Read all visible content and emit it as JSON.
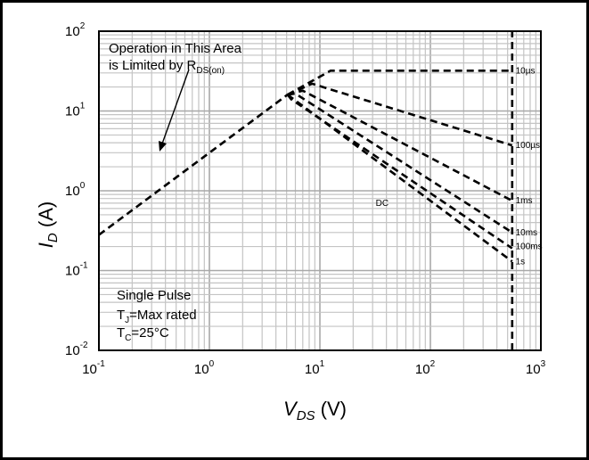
{
  "chart_data": {
    "type": "line",
    "xscale": "log",
    "yscale": "log",
    "xlim": [
      0.1,
      1000
    ],
    "ylim": [
      0.01,
      100
    ],
    "grid": true,
    "xlabel": {
      "main": "V",
      "sub": "DS",
      "unit": " (V)"
    },
    "ylabel": {
      "main": "I",
      "sub": "D",
      "unit": " (A)"
    },
    "x_ticks": [
      {
        "base": "10",
        "exp": "-1"
      },
      {
        "base": "10",
        "exp": "0"
      },
      {
        "base": "10",
        "exp": "1"
      },
      {
        "base": "10",
        "exp": "2"
      },
      {
        "base": "10",
        "exp": "3"
      }
    ],
    "y_ticks": [
      {
        "base": "10",
        "exp": "-2"
      },
      {
        "base": "10",
        "exp": "-1"
      },
      {
        "base": "10",
        "exp": "0"
      },
      {
        "base": "10",
        "exp": "1"
      },
      {
        "base": "10",
        "exp": "2"
      }
    ],
    "rds_line": {
      "x": [
        0.1,
        5.1
      ],
      "y": [
        0.28,
        16
      ]
    },
    "vmax_line": {
      "x": [
        550,
        550
      ],
      "y": [
        0.01,
        100
      ]
    },
    "series": [
      {
        "name": "10µs",
        "x": [
          5.1,
          12.5,
          560
        ],
        "y": [
          16,
          32,
          32
        ]
      },
      {
        "name": "100µs",
        "x": [
          5.1,
          8.5,
          550
        ],
        "y": [
          16,
          22,
          3.7
        ]
      },
      {
        "name": "1ms",
        "x": [
          5.1,
          7.0,
          550
        ],
        "y": [
          16,
          18,
          0.75
        ]
      },
      {
        "name": "10ms",
        "x": [
          5.1,
          6.0,
          550
        ],
        "y": [
          16,
          16.5,
          0.3
        ]
      },
      {
        "name": "100ms",
        "x": [
          5.1,
          5.5,
          550
        ],
        "y": [
          16,
          14,
          0.19
        ]
      },
      {
        "name": "1s",
        "x": [
          5.1,
          550
        ],
        "y": [
          16,
          0.13
        ]
      }
    ],
    "series_labels": [
      {
        "text": "10µs",
        "x": 590,
        "y": 32
      },
      {
        "text": "100µs",
        "x": 590,
        "y": 3.7
      },
      {
        "text": "1ms",
        "x": 590,
        "y": 0.75
      },
      {
        "text": "10ms",
        "x": 590,
        "y": 0.3
      },
      {
        "text": "100ms",
        "x": 590,
        "y": 0.2
      },
      {
        "text": "1s",
        "x": 590,
        "y": 0.13
      },
      {
        "text": "DC",
        "x": 32,
        "y": 0.7
      }
    ],
    "annotations": {
      "rds_line1": "Operation in This Area",
      "rds_line2_prefix": "is Limited by R",
      "rds_line2_sub": "DS(on)",
      "pulse_line1": "Single Pulse",
      "pulse_line2_prefix": "T",
      "pulse_line2_sub": "J",
      "pulse_line2_suffix": "=Max rated",
      "pulse_line3_prefix": "T",
      "pulse_line3_sub": "C",
      "pulse_line3_suffix": "=25°C"
    }
  }
}
